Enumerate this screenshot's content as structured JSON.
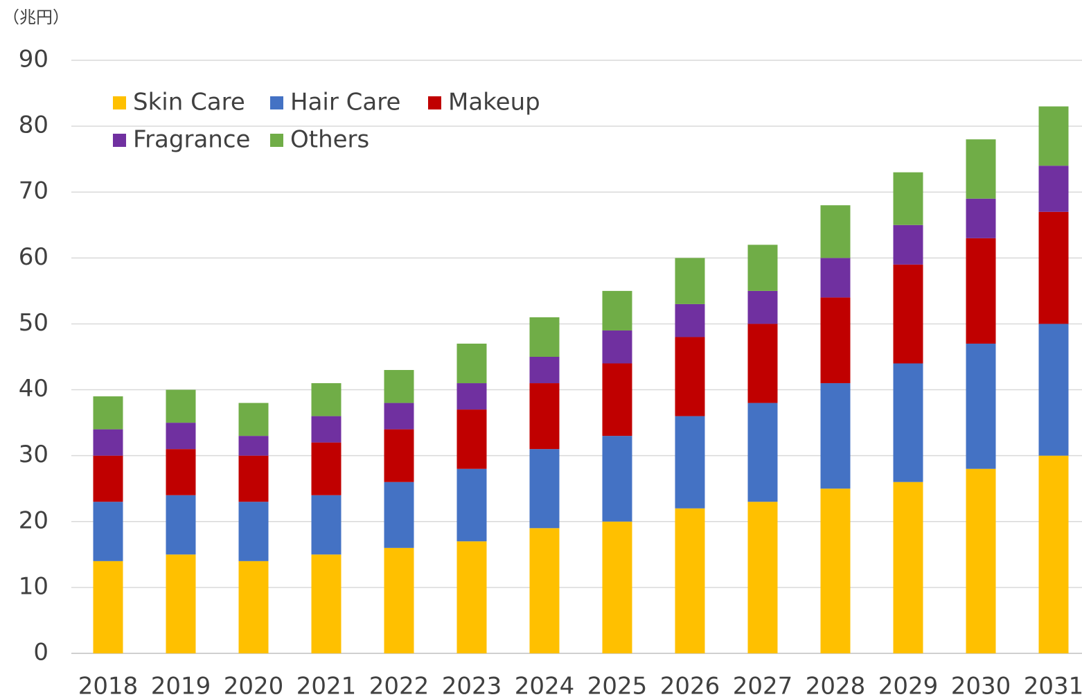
{
  "chart_data": {
    "type": "stacked_bar",
    "unit_label": "（兆円）",
    "categories": [
      "2018",
      "2019",
      "2020",
      "2021",
      "2022",
      "2023",
      "2024",
      "2025",
      "2026",
      "2027",
      "2028",
      "2029",
      "2030",
      "2031"
    ],
    "series": [
      {
        "name": "Skin Care",
        "color": "#FFC000",
        "values": [
          14,
          15,
          14,
          15,
          16,
          17,
          19,
          20,
          22,
          23,
          25,
          26,
          28,
          30
        ]
      },
      {
        "name": "Hair Care",
        "color": "#4472C4",
        "values": [
          9,
          9,
          9,
          9,
          10,
          11,
          12,
          13,
          14,
          15,
          16,
          18,
          19,
          20
        ]
      },
      {
        "name": "Makeup",
        "color": "#C00000",
        "values": [
          7,
          7,
          7,
          8,
          8,
          9,
          10,
          11,
          12,
          12,
          13,
          15,
          16,
          17
        ]
      },
      {
        "name": "Fragrance",
        "color": "#7030A0",
        "values": [
          4,
          4,
          3,
          4,
          4,
          4,
          4,
          5,
          5,
          5,
          6,
          6,
          6,
          7
        ]
      },
      {
        "name": "Others",
        "color": "#70AD47",
        "values": [
          5,
          5,
          5,
          5,
          5,
          6,
          6,
          6,
          7,
          7,
          8,
          8,
          9,
          9
        ]
      }
    ],
    "ylim": [
      0,
      90
    ],
    "yticks": [
      0,
      10,
      20,
      30,
      40,
      50,
      60,
      70,
      80,
      90
    ],
    "grid": true,
    "legend": "top-left"
  }
}
